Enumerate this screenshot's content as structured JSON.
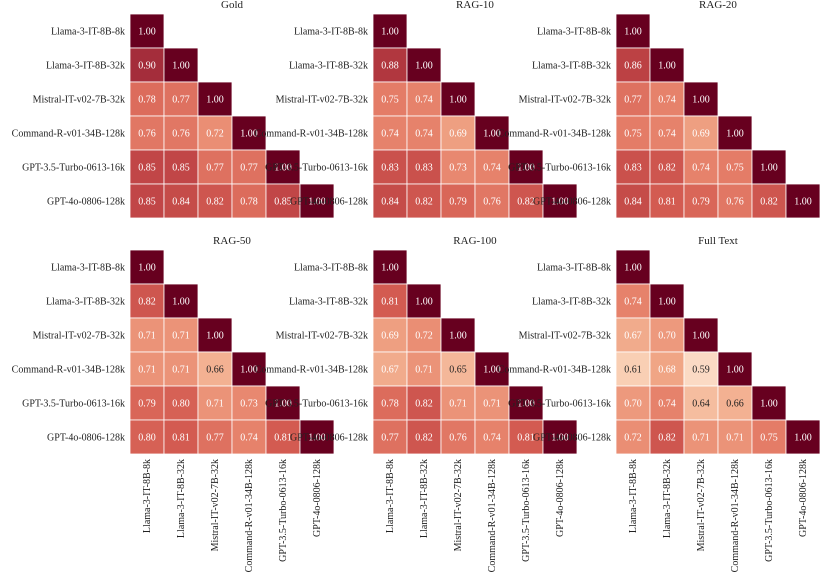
{
  "chart_data": {
    "type": "heatmap",
    "models": [
      "Llama-3-IT-8B-8k",
      "Llama-3-IT-8B-32k",
      "Mistral-IT-v02-7B-32k",
      "Command-R-v01-34B-128k",
      "GPT-3.5-Turbo-0613-16k",
      "GPT-4o-0806-128k"
    ],
    "mask": "lower-triangle",
    "panels": [
      {
        "title": "Gold",
        "values": [
          [
            1.0
          ],
          [
            0.9,
            1.0
          ],
          [
            0.78,
            0.77,
            1.0
          ],
          [
            0.76,
            0.76,
            0.72,
            1.0
          ],
          [
            0.85,
            0.85,
            0.77,
            0.77,
            1.0
          ],
          [
            0.85,
            0.84,
            0.82,
            0.78,
            0.85,
            1.0
          ]
        ]
      },
      {
        "title": "RAG-10",
        "values": [
          [
            1.0
          ],
          [
            0.88,
            1.0
          ],
          [
            0.75,
            0.74,
            1.0
          ],
          [
            0.74,
            0.74,
            0.69,
            1.0
          ],
          [
            0.83,
            0.83,
            0.73,
            0.74,
            1.0
          ],
          [
            0.84,
            0.82,
            0.79,
            0.76,
            0.82,
            1.0
          ]
        ]
      },
      {
        "title": "RAG-20",
        "values": [
          [
            1.0
          ],
          [
            0.86,
            1.0
          ],
          [
            0.77,
            0.74,
            1.0
          ],
          [
            0.75,
            0.74,
            0.69,
            1.0
          ],
          [
            0.83,
            0.82,
            0.74,
            0.75,
            1.0
          ],
          [
            0.84,
            0.81,
            0.79,
            0.76,
            0.82,
            1.0
          ]
        ]
      },
      {
        "title": "RAG-50",
        "values": [
          [
            1.0
          ],
          [
            0.82,
            1.0
          ],
          [
            0.71,
            0.71,
            1.0
          ],
          [
            0.71,
            0.71,
            0.66,
            1.0
          ],
          [
            0.79,
            0.8,
            0.71,
            0.73,
            1.0
          ],
          [
            0.8,
            0.81,
            0.77,
            0.74,
            0.81,
            1.0
          ]
        ]
      },
      {
        "title": "RAG-100",
        "values": [
          [
            1.0
          ],
          [
            0.81,
            1.0
          ],
          [
            0.69,
            0.72,
            1.0
          ],
          [
            0.67,
            0.71,
            0.65,
            1.0
          ],
          [
            0.78,
            0.82,
            0.71,
            0.71,
            1.0
          ],
          [
            0.77,
            0.82,
            0.76,
            0.74,
            0.81,
            1.0
          ]
        ]
      },
      {
        "title": "Full Text",
        "values": [
          [
            1.0
          ],
          [
            0.74,
            1.0
          ],
          [
            0.67,
            0.7,
            1.0
          ],
          [
            0.61,
            0.68,
            0.59,
            1.0
          ],
          [
            0.7,
            0.74,
            0.64,
            0.66,
            1.0
          ],
          [
            0.72,
            0.82,
            0.71,
            0.71,
            0.75,
            1.0
          ]
        ]
      }
    ],
    "colormap": {
      "name": "Reds",
      "vmin": 0.55,
      "vmax": 1.0,
      "stops": [
        "#fdf0e6",
        "#f9cdb0",
        "#f0a686",
        "#e6806a",
        "#d45d52",
        "#b73b41",
        "#8d1b34",
        "#67001f"
      ]
    },
    "colorbar": false
  }
}
